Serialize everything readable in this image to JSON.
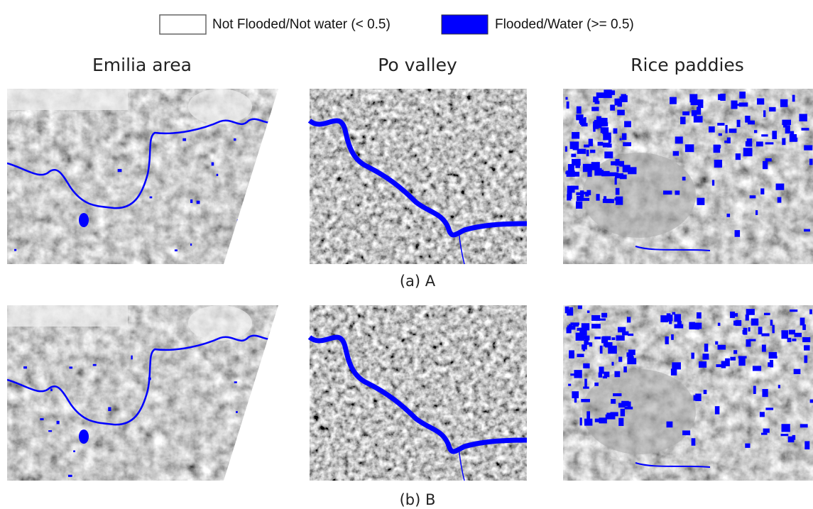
{
  "legend": [
    {
      "label": "Not Flooded/Not water (< 0.5)"
    },
    {
      "label": "Flooded/Water (>= 0.5)"
    }
  ],
  "columns": [
    "Emilia area",
    "Po valley",
    "Rice paddies"
  ],
  "rows": [
    {
      "caption": "(a) A"
    },
    {
      "caption": "(b) B"
    }
  ]
}
